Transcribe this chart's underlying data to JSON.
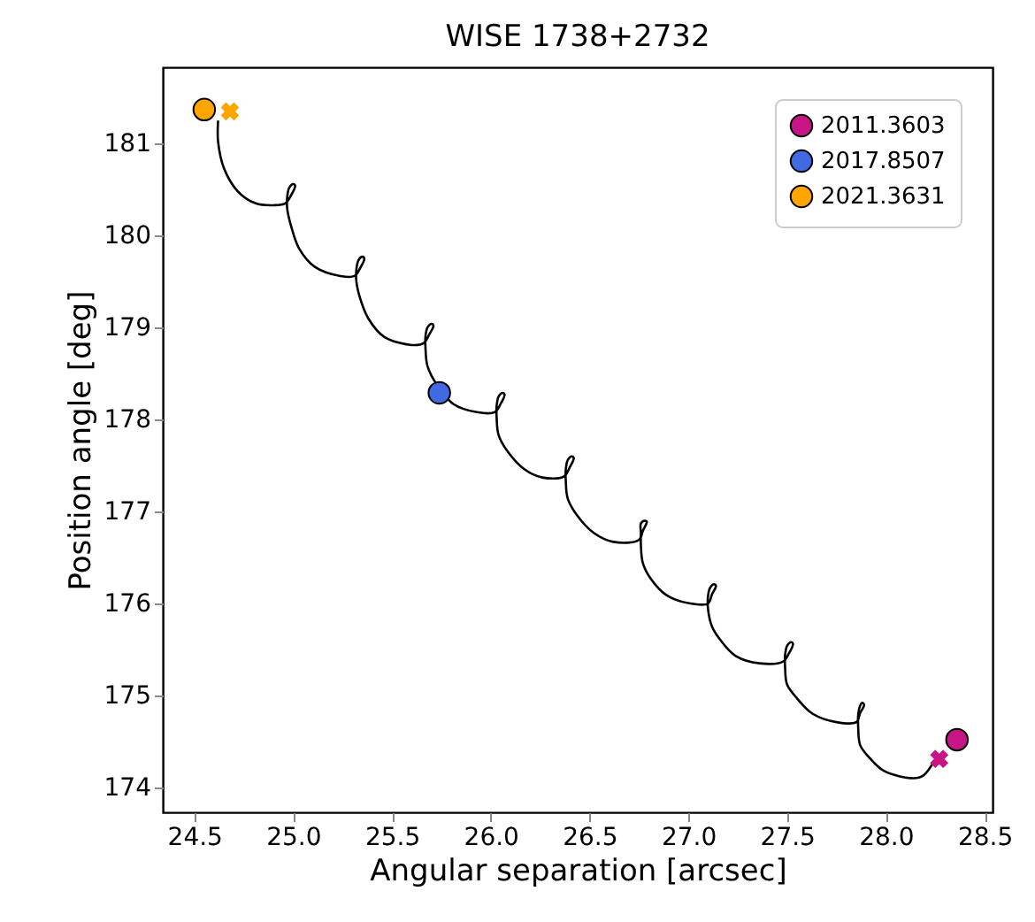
{
  "chart_data": {
    "type": "scatter",
    "title": "WISE 1738+2732",
    "xlabel": "Angular separation [arcsec]",
    "ylabel": "Position angle [deg]",
    "xlim": [
      24.34,
      28.54
    ],
    "ylim": [
      173.73,
      181.83
    ],
    "xticks": [
      24.5,
      {
        "value": 25,
        "label": "25.0"
      },
      25.5,
      {
        "value": 26,
        "label": "26.0"
      },
      26.5,
      {
        "value": 27,
        "label": "27.0"
      },
      27.5,
      {
        "value": 28,
        "label": "28.0"
      },
      28.5
    ],
    "yticks": [
      174,
      175,
      176,
      177,
      178,
      179,
      180,
      181
    ],
    "grid": false,
    "legend": "top right",
    "series": [
      {
        "type": "line",
        "color": "#000000",
        "line_style": "solid",
        "marker": "none",
        "x": [
          24.62,
          24.62,
          24.65,
          24.72,
          24.81,
          24.9,
          24.96,
          24.99,
          25.01,
          25.0,
          24.98,
          24.97,
          24.97,
          24.99,
          25.03,
          25.11,
          25.24,
          25.31,
          25.34,
          25.36,
          25.35,
          25.33,
          25.32,
          25.32,
          25.34,
          25.38,
          25.46,
          25.6,
          25.66,
          25.69,
          25.71,
          25.7,
          25.68,
          25.67,
          25.67,
          25.68,
          25.73,
          25.81,
          25.93,
          26.02,
          26.05,
          26.07,
          26.06,
          26.04,
          26.03,
          26.03,
          26.04,
          26.09,
          26.17,
          26.26,
          26.37,
          26.4,
          26.42,
          26.41,
          26.39,
          26.38,
          26.38,
          26.39,
          26.44,
          26.52,
          26.62,
          26.75,
          26.77,
          26.79,
          26.78,
          26.76,
          26.76,
          26.76,
          26.77,
          26.81,
          26.89,
          27.01,
          27.1,
          27.12,
          27.14,
          27.13,
          27.11,
          27.1,
          27.1,
          27.12,
          27.16,
          27.24,
          27.36,
          27.48,
          27.51,
          27.53,
          27.52,
          27.5,
          27.49,
          27.49,
          27.5,
          27.55,
          27.63,
          27.75,
          27.85,
          27.87,
          27.89,
          27.88,
          27.87,
          27.86,
          27.86,
          27.87,
          27.91,
          27.99,
          28.14,
          28.19,
          28.24
        ],
        "values": [
          181.25,
          181.02,
          180.73,
          180.48,
          180.35,
          180.33,
          180.35,
          180.44,
          180.54,
          180.56,
          180.52,
          180.42,
          180.29,
          180.1,
          179.86,
          179.66,
          179.56,
          179.56,
          179.65,
          179.75,
          179.77,
          179.73,
          179.63,
          179.5,
          179.31,
          179.1,
          178.9,
          178.81,
          178.83,
          178.93,
          179.02,
          179.04,
          179.0,
          178.91,
          178.77,
          178.58,
          178.37,
          178.17,
          178.08,
          178.08,
          178.17,
          178.27,
          178.29,
          178.25,
          178.15,
          178.02,
          177.83,
          177.64,
          177.46,
          177.37,
          177.38,
          177.48,
          177.58,
          177.6,
          177.56,
          177.46,
          177.33,
          177.14,
          176.95,
          176.77,
          176.67,
          176.69,
          176.79,
          176.89,
          176.9,
          176.87,
          176.77,
          176.64,
          176.44,
          176.27,
          176.09,
          176.0,
          176.0,
          176.1,
          176.19,
          176.21,
          176.17,
          176.08,
          175.94,
          175.75,
          175.61,
          175.43,
          175.35,
          175.37,
          175.46,
          175.56,
          175.58,
          175.54,
          175.44,
          175.31,
          175.12,
          174.97,
          174.8,
          174.71,
          174.71,
          174.81,
          174.9,
          174.92,
          174.89,
          174.79,
          174.65,
          174.46,
          174.34,
          174.18,
          174.1,
          174.13,
          174.27
        ]
      },
      {
        "name": "2011.3603",
        "color": "#c71585",
        "marker": "circle",
        "x": [
          28.36
        ],
        "values": [
          174.52
        ]
      },
      {
        "name": "2017.8507",
        "color": "#4169e1",
        "marker": "circle",
        "x": [
          25.74
        ],
        "values": [
          178.29
        ]
      },
      {
        "name": "2021.3631",
        "color": "#ffa500",
        "marker": "circle",
        "x": [
          24.55
        ],
        "values": [
          181.37
        ]
      },
      {
        "color": "#c71585",
        "marker": "cross",
        "x": [
          28.27
        ],
        "values": [
          174.31
        ]
      },
      {
        "color": "#ffa500",
        "marker": "cross",
        "x": [
          24.68
        ],
        "values": [
          181.35
        ]
      }
    ]
  }
}
